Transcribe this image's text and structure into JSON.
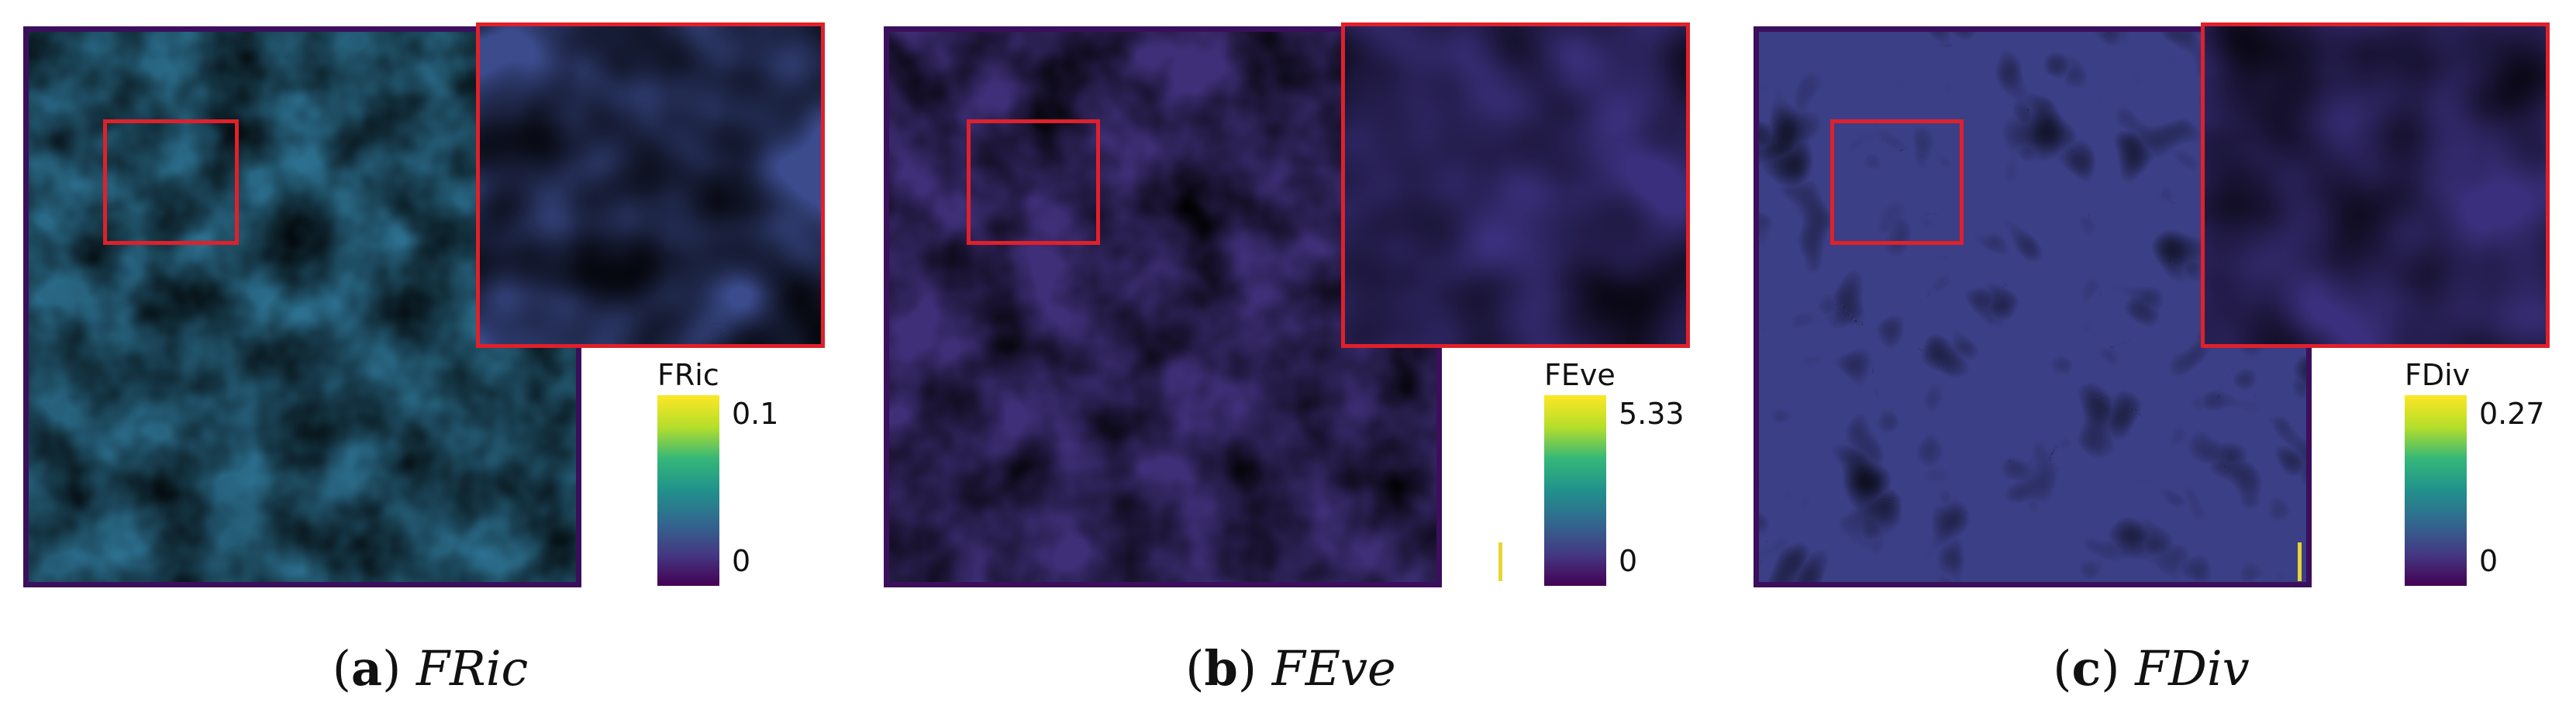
{
  "panels": [
    {
      "id": "a",
      "caption_label": "a",
      "caption_name": "FRic",
      "colorbar": {
        "title": "FRic",
        "max": "0.1",
        "min": "0"
      },
      "palette": {
        "low": "#440154",
        "mid": "#21918c",
        "high": "#fde725"
      },
      "intensity": 0.55
    },
    {
      "id": "b",
      "caption_label": "b",
      "caption_name": "FEve",
      "colorbar": {
        "title": "FEve",
        "max": "5.33",
        "min": "0"
      },
      "palette": {
        "low": "#440154",
        "mid": "#21918c",
        "high": "#fde725"
      },
      "intensity": 0.25
    },
    {
      "id": "c",
      "caption_label": "c",
      "caption_name": "FDiv",
      "colorbar": {
        "title": "FDiv",
        "max": "0.27",
        "min": "0"
      },
      "palette": {
        "low": "#440154",
        "mid": "#21918c",
        "high": "#fde725"
      },
      "intensity": 0.22
    }
  ],
  "colors": {
    "frame": "#3b0f5c",
    "highlight": "#e0202a"
  }
}
